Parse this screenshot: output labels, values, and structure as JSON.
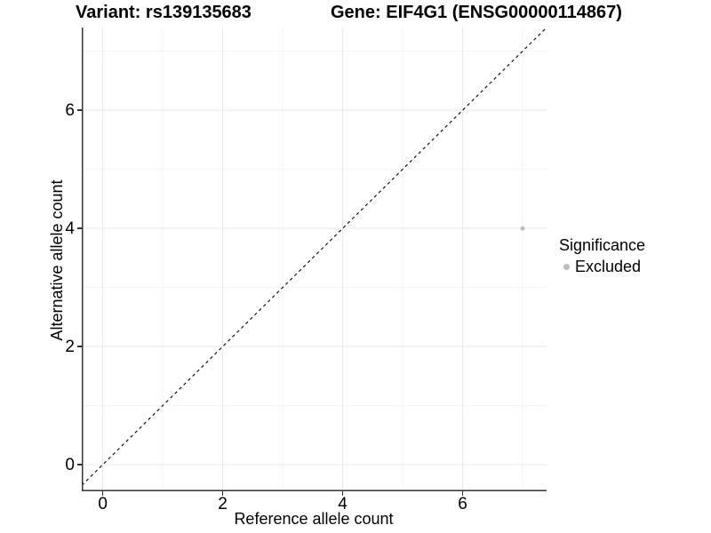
{
  "titles": {
    "variant": "Variant: rs139135683",
    "gene": "Gene: EIF4G1 (ENSG00000114867)"
  },
  "chart_data": {
    "type": "scatter",
    "title": "Variant: rs139135683    Gene: EIF4G1 (ENSG00000114867)",
    "xlabel": "Reference allele count",
    "ylabel": "Alternative allele count",
    "xlim": [
      -0.35,
      7.4
    ],
    "ylim": [
      -0.45,
      7.4
    ],
    "xticks": [
      0,
      2,
      4,
      6
    ],
    "yticks": [
      0,
      2,
      4,
      6
    ],
    "minor_xticks": [
      1,
      3,
      5,
      7
    ],
    "minor_yticks": [
      1,
      3,
      5,
      7
    ],
    "grid": true,
    "reference_line": {
      "kind": "diagonal",
      "equation": "y = x",
      "style": "dashed",
      "color": "#000000"
    },
    "series": [
      {
        "name": "Excluded",
        "color": "#bdbdbd",
        "points": [
          {
            "x": 7,
            "y": 4
          }
        ],
        "point_radius": 2.5
      }
    ],
    "legend": {
      "title": "Significance",
      "position": "right",
      "items": [
        {
          "label": "Excluded",
          "color": "#bdbdbd"
        }
      ]
    }
  },
  "colors": {
    "background": "#ffffff",
    "major_grid": "#e8e8e8",
    "minor_grid": "#f4f4f4",
    "axis_line": "#333333",
    "tick_mark": "#333333",
    "text": "#000000"
  }
}
